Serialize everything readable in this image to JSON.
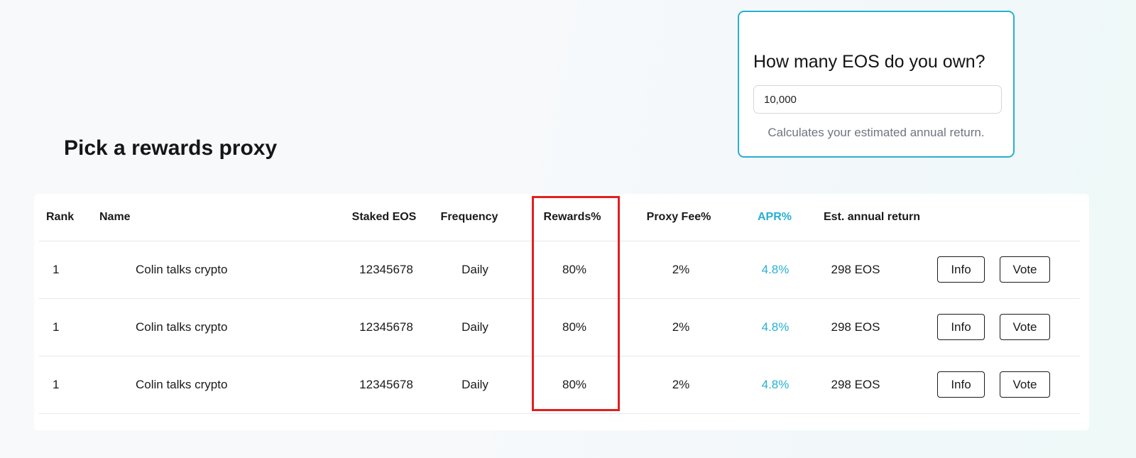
{
  "calculator": {
    "title": "How many EOS do you own?",
    "input_value": "10,000",
    "hint": "Calculates your estimated annual return."
  },
  "page": {
    "title": "Pick a rewards proxy"
  },
  "table": {
    "headers": {
      "rank": "Rank",
      "name": "Name",
      "staked": "Staked EOS",
      "frequency": "Frequency",
      "rewards": "Rewards%",
      "fee": "Proxy Fee%",
      "apr": "APR%",
      "annual": "Est. annual return"
    },
    "rows": [
      {
        "rank": "1",
        "name": "Colin talks crypto",
        "staked": "12345678",
        "frequency": "Daily",
        "rewards": "80%",
        "fee": "2%",
        "apr": "4.8%",
        "annual": "298 EOS",
        "info_label": "Info",
        "vote_label": "Vote"
      },
      {
        "rank": "1",
        "name": "Colin talks crypto",
        "staked": "12345678",
        "frequency": "Daily",
        "rewards": "80%",
        "fee": "2%",
        "apr": "4.8%",
        "annual": "298 EOS",
        "info_label": "Info",
        "vote_label": "Vote"
      },
      {
        "rank": "1",
        "name": "Colin talks crypto",
        "staked": "12345678",
        "frequency": "Daily",
        "rewards": "80%",
        "fee": "2%",
        "apr": "4.8%",
        "annual": "298 EOS",
        "info_label": "Info",
        "vote_label": "Vote"
      }
    ]
  },
  "colors": {
    "accent": "#27b0d2",
    "highlight": "#e21f1f",
    "text": "#1a1a1a",
    "muted": "#6e7582"
  }
}
